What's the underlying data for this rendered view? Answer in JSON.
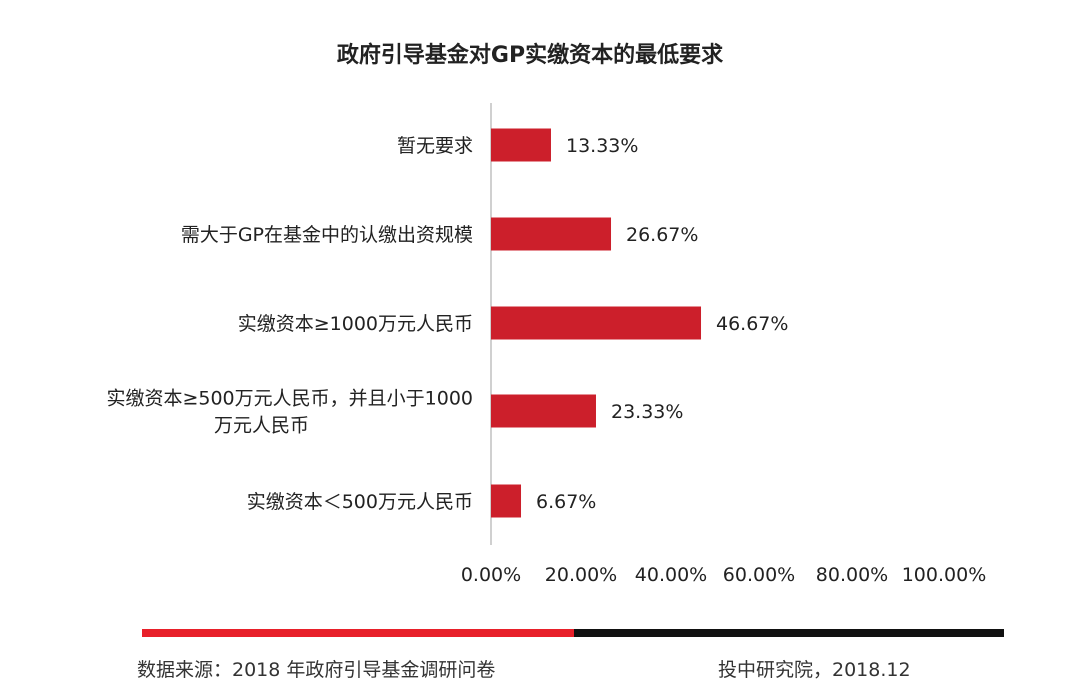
{
  "colors": {
    "bar": "#cc1f2b",
    "axis": "#d0d0d0",
    "text": "#222222",
    "footer_red": "#e8202a",
    "footer_black": "#111111"
  },
  "chart_data": {
    "type": "bar",
    "orientation": "horizontal",
    "title": "政府引导基金对GP实缴资本的最低要求",
    "categories": [
      [
        "暂无要求"
      ],
      [
        "需大于GP在基金中的认缴出资规模"
      ],
      [
        "实缴资本≥1000万元人民币"
      ],
      [
        "实缴资本≥500万元人民币，并且小于1000",
        "万元人民币"
      ],
      [
        "实缴资本＜500万元人民币"
      ]
    ],
    "values": [
      13.33,
      26.67,
      46.67,
      23.33,
      6.67
    ],
    "value_labels": [
      "13.33%",
      "26.67%",
      "46.67%",
      "23.33%",
      "6.67%"
    ],
    "xlim": [
      0,
      100
    ],
    "x_ticks": [
      "0.00%",
      "20.00%",
      "40.00%",
      "60.00%",
      "80.00%",
      "100.00%"
    ],
    "grid": false
  },
  "footer": {
    "source": "数据来源：2018 年政府引导基金调研问卷",
    "credit": "投中研究院，2018.12"
  }
}
